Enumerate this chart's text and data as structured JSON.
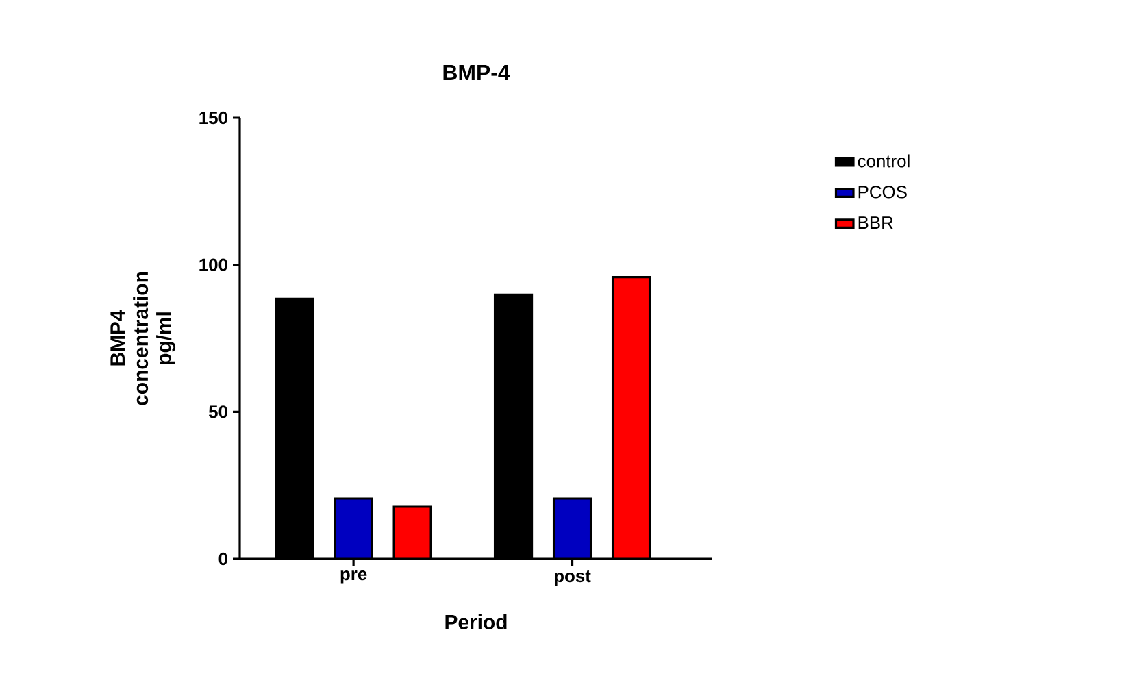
{
  "chart_data": {
    "type": "bar",
    "title": "BMP-4",
    "xlabel": "Period",
    "ylabel": "BMP4 concentration pg/ml",
    "categories": [
      "pre",
      "post"
    ],
    "series": [
      {
        "name": "control",
        "color": "#000000",
        "values": [
          88.4,
          89.8
        ]
      },
      {
        "name": "PCOS",
        "color": "#0000c0",
        "values": [
          20.5,
          20.5
        ]
      },
      {
        "name": "BBR",
        "color": "#ff0000",
        "values": [
          17.7,
          95.8
        ]
      }
    ],
    "ylim": [
      0,
      150
    ],
    "yticks": [
      0,
      50,
      100,
      150
    ],
    "legend": "right",
    "grid": false
  }
}
